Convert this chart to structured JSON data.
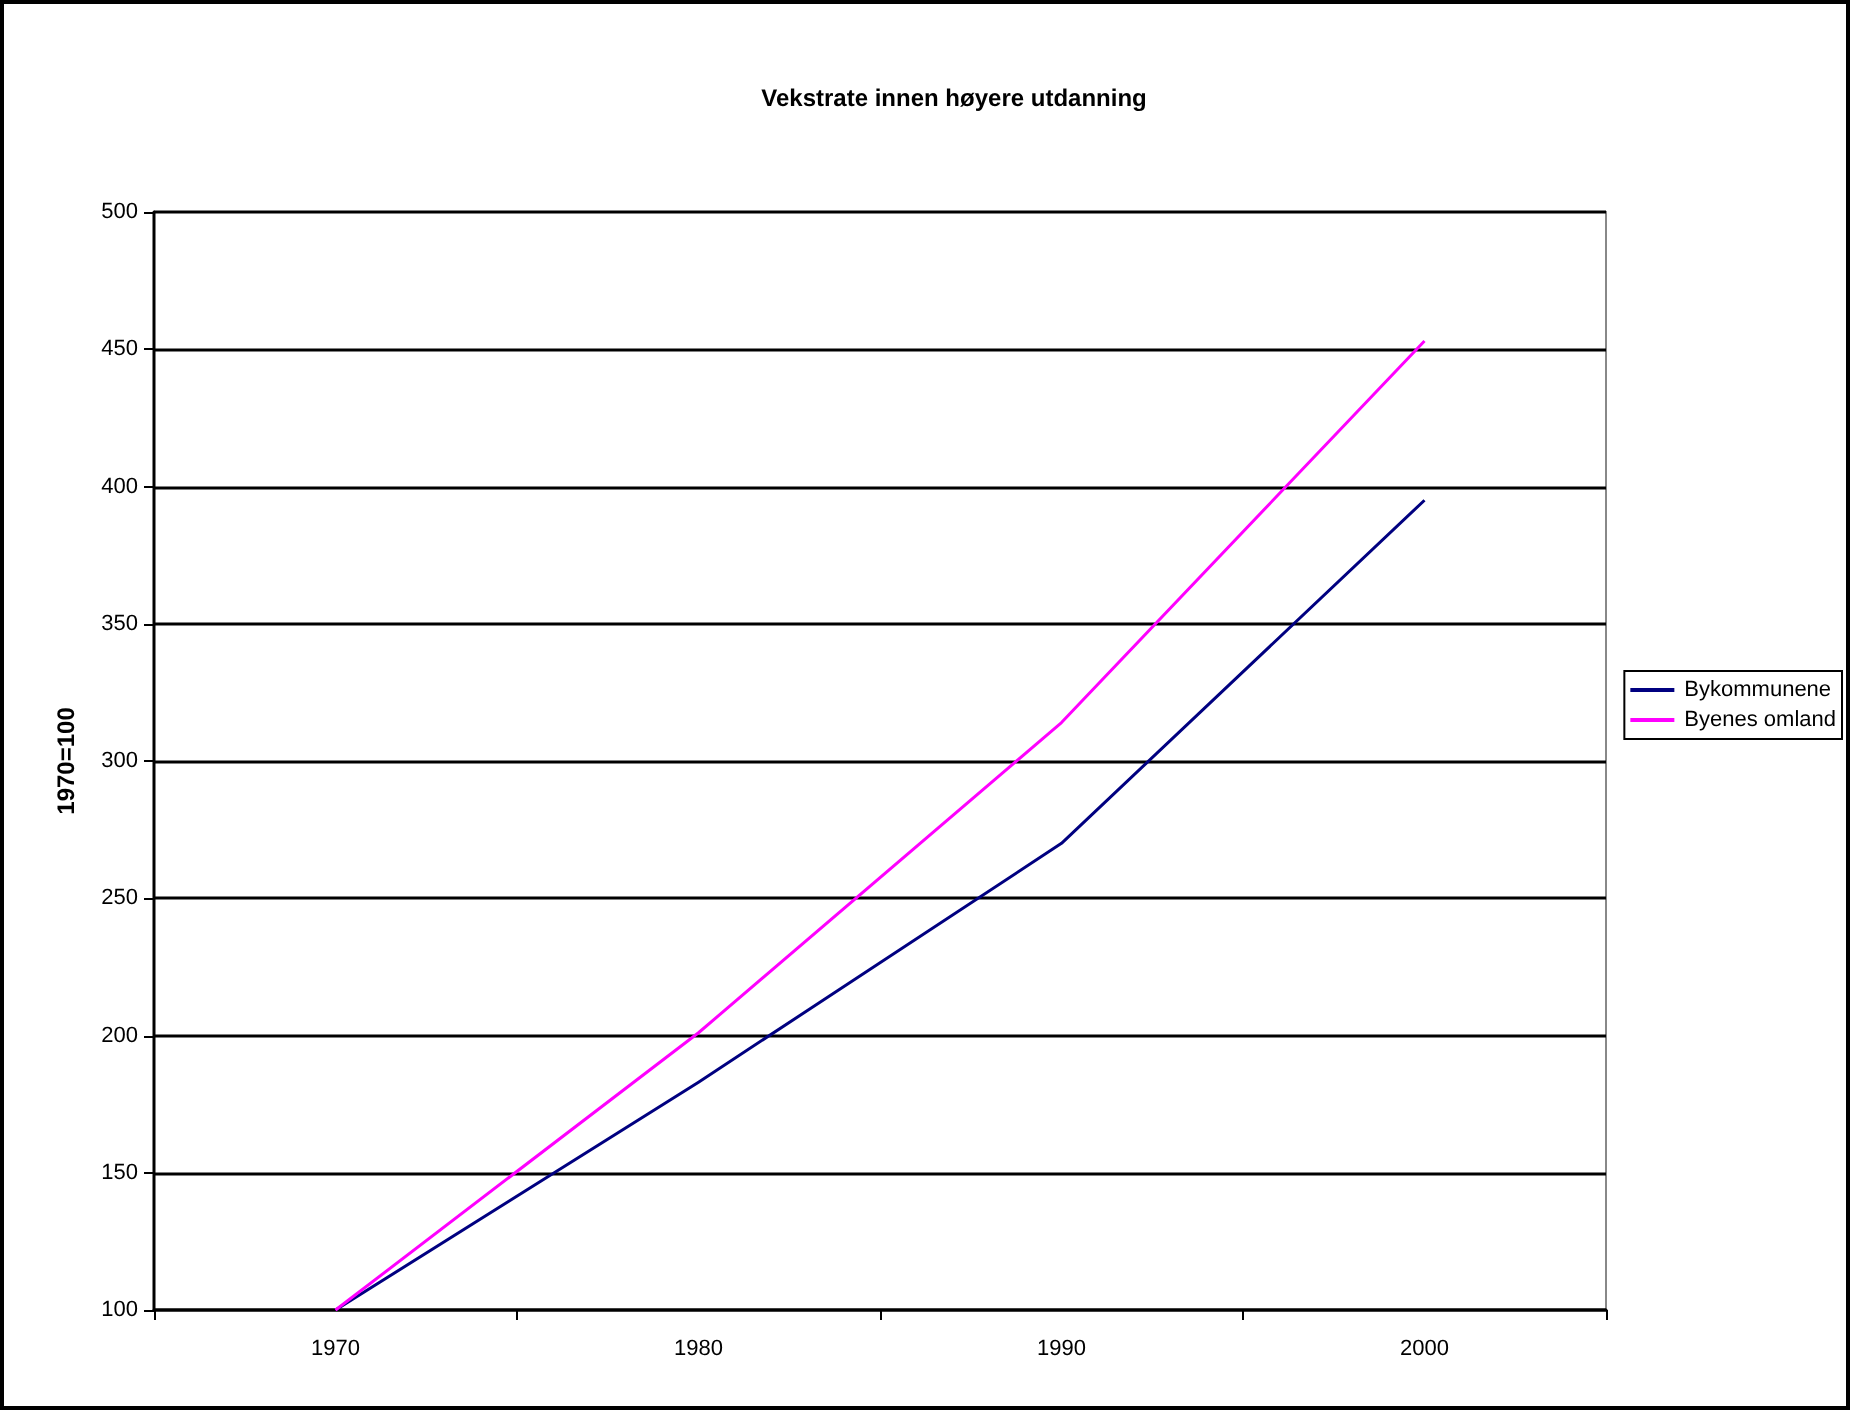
{
  "chart_data": {
    "type": "line",
    "title": "Vekstrate innen høyere utdanning",
    "ylabel": "1970=100",
    "categories": [
      "1970",
      "1980",
      "1990",
      "2000"
    ],
    "series": [
      {
        "name": "Bykommunene",
        "color": "#000080",
        "values": [
          100,
          183,
          270,
          395
        ]
      },
      {
        "name": "Byenes omland",
        "color": "#ff00ff",
        "values": [
          100,
          201,
          314,
          453
        ]
      }
    ],
    "ylim": [
      100,
      500
    ],
    "yticks": [
      100,
      150,
      200,
      250,
      300,
      350,
      400,
      450,
      500
    ],
    "grid": "y",
    "legend": "right",
    "marker": "none",
    "line_style": "solid"
  }
}
